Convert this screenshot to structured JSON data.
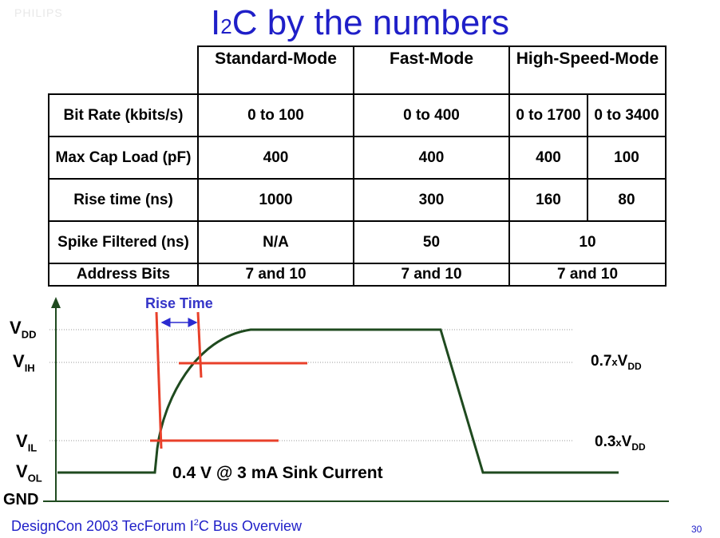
{
  "logo": "PHILIPS",
  "title": {
    "prefix": "I",
    "sup": "2",
    "rest": "C by the numbers"
  },
  "table": {
    "headers": [
      "Standard-Mode",
      "Fast-Mode",
      "High-Speed-Mode"
    ],
    "rows": [
      {
        "label": "Bit Rate (kbits/s)",
        "standard": "0 to 100",
        "fast": "0 to 400",
        "hs_a": "0 to 1700",
        "hs_b": "0 to 3400"
      },
      {
        "label": "Max Cap Load (pF)",
        "standard": "400",
        "fast": "400",
        "hs_a": "400",
        "hs_b": "100"
      },
      {
        "label": "Rise time (ns)",
        "standard": "1000",
        "fast": "300",
        "hs_a": "160",
        "hs_b": "80"
      },
      {
        "label": "Spike Filtered (ns)",
        "standard": "N/A",
        "fast": "50",
        "hs": "10"
      },
      {
        "label": "Address Bits",
        "standard": "7 and 10",
        "fast": "7 and 10",
        "hs": "7 and 10"
      }
    ]
  },
  "diagram": {
    "rise_time_label": "Rise Time",
    "levels": {
      "vdd": {
        "main": "V",
        "sub": "DD"
      },
      "vih": {
        "main": "V",
        "sub": "IH"
      },
      "vil": {
        "main": "V",
        "sub": "IL"
      },
      "vol": {
        "main": "V",
        "sub": "OL"
      },
      "gnd": "GND"
    },
    "right_labels": {
      "vih": {
        "prefix": "0.7",
        "x": "x",
        "main": "V",
        "sub": "DD"
      },
      "vil": {
        "prefix": "0.3",
        "x": "x",
        "main": "V",
        "sub": "DD"
      }
    },
    "sink_label": "0.4 V @ 3 mA Sink Current",
    "colors": {
      "signal": "#1f4a1f",
      "threshold": "#e8402a",
      "arrow": "#2b2bd0"
    }
  },
  "footer": {
    "prefix": "DesignCon 2003  TecForum  I",
    "sup": "2",
    "rest": "C Bus Overview"
  },
  "page_number": "30"
}
